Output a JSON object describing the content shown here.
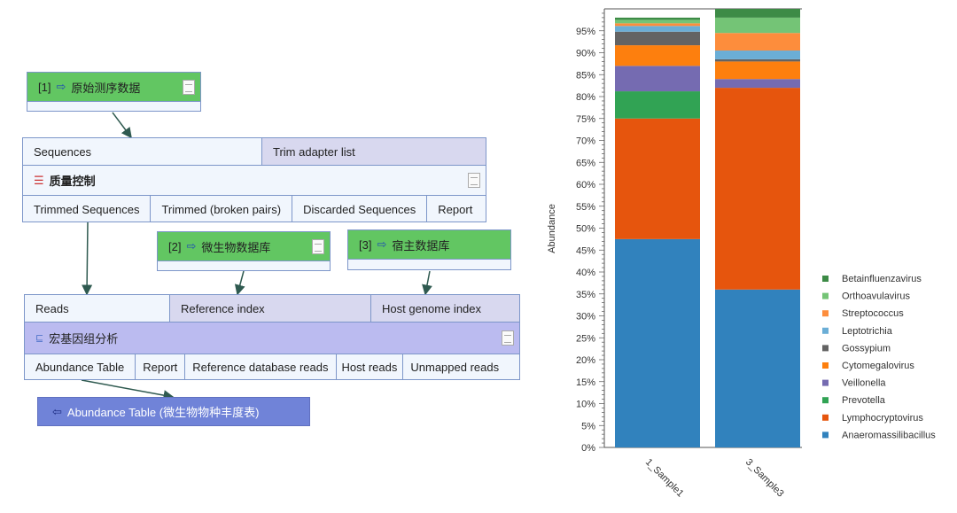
{
  "diagram": {
    "input1": {
      "index": "[1]",
      "label": "原始测序数据"
    },
    "input2": {
      "index": "[2]",
      "label": "微生物数据库"
    },
    "input3": {
      "index": "[3]",
      "label": "宿主数据库"
    },
    "qc": {
      "inputs": [
        "Sequences",
        "Trim adapter list"
      ],
      "title": "质量控制",
      "outputs": [
        "Trimmed Sequences",
        "Trimmed (broken pairs)",
        "Discarded Sequences",
        "Report"
      ]
    },
    "meta": {
      "inputs": [
        "Reads",
        "Reference index",
        "Host genome index"
      ],
      "title": "宏基因组分析",
      "outputs": [
        "Abundance Table",
        "Report",
        "Reference database reads",
        "Host reads",
        "Unmapped reads"
      ]
    },
    "output": {
      "label": "Abundance Table (微生物物种丰度表)"
    }
  },
  "chart_data": {
    "type": "bar",
    "stacked": true,
    "ylabel": "Abundance",
    "xlabel": "",
    "ylim": [
      0,
      100
    ],
    "yticks": [
      "0%",
      "5%",
      "10%",
      "15%",
      "20%",
      "25%",
      "30%",
      "35%",
      "40%",
      "45%",
      "50%",
      "55%",
      "60%",
      "65%",
      "70%",
      "75%",
      "80%",
      "85%",
      "90%",
      "95%"
    ],
    "categories": [
      "1_Sample1",
      "3_Sample3"
    ],
    "legend_position": "right",
    "series": [
      {
        "name": "Anaeromassilibacillus",
        "color": "#3182bd",
        "values": [
          47.5,
          36
        ]
      },
      {
        "name": "Lymphocryptovirus",
        "color": "#e6550d",
        "values": [
          27.5,
          46
        ]
      },
      {
        "name": "Prevotella",
        "color": "#31a354",
        "values": [
          6.2,
          0
        ]
      },
      {
        "name": "Veillonella",
        "color": "#756bb1",
        "values": [
          5.8,
          2
        ]
      },
      {
        "name": "Cytomegalovirus",
        "color": "#fd7f0e",
        "values": [
          4.7,
          4
        ]
      },
      {
        "name": "Gossypium",
        "color": "#636363",
        "values": [
          3.1,
          0.5
        ]
      },
      {
        "name": "Leptotrichia",
        "color": "#6baed6",
        "values": [
          1.3,
          2
        ]
      },
      {
        "name": "Streptococcus",
        "color": "#fd8d3c",
        "values": [
          0.6,
          4
        ]
      },
      {
        "name": "Orthoavulavirus",
        "color": "#74c476",
        "values": [
          0.8,
          3.5
        ]
      },
      {
        "name": "Betainfluenzavirus",
        "color": "#3d8b46",
        "values": [
          0.5,
          2
        ]
      }
    ]
  }
}
